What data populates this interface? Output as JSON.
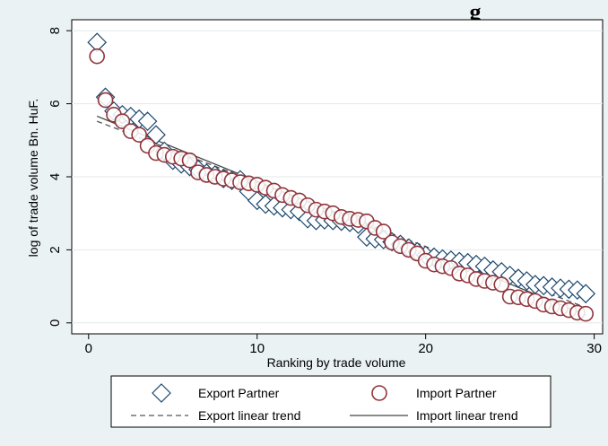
{
  "chart_data": {
    "type": "scatter",
    "title": "g",
    "xlabel": "Ranking by trade volume",
    "ylabel": "log of trade volume Bn. HuF.",
    "xlim": [
      -1,
      30.5
    ],
    "ylim": [
      -0.3,
      8.3
    ],
    "xticks": [
      0,
      10,
      20,
      30
    ],
    "yticks": [
      0,
      2,
      4,
      6,
      8
    ],
    "grid": "horizontal",
    "legend_position": "bottom",
    "series": [
      {
        "name": "Export Partner",
        "marker": "diamond",
        "color": "#1a476f",
        "points": [
          [
            0.5,
            7.68
          ],
          [
            1,
            6.18
          ],
          [
            1.5,
            5.8
          ],
          [
            2,
            5.7
          ],
          [
            2.5,
            5.65
          ],
          [
            3,
            5.58
          ],
          [
            3.5,
            5.52
          ],
          [
            4,
            5.15
          ],
          [
            4.5,
            4.7
          ],
          [
            5,
            4.45
          ],
          [
            5.5,
            4.35
          ],
          [
            6,
            4.28
          ],
          [
            6.5,
            4.2
          ],
          [
            7,
            4.1
          ],
          [
            7.5,
            4.05
          ],
          [
            8,
            3.95
          ],
          [
            8.5,
            3.9
          ],
          [
            9,
            3.92
          ],
          [
            9.5,
            3.6
          ],
          [
            10,
            3.35
          ],
          [
            10.5,
            3.25
          ],
          [
            11,
            3.2
          ],
          [
            11.5,
            3.15
          ],
          [
            12,
            3.1
          ],
          [
            12.5,
            3.05
          ],
          [
            13,
            2.85
          ],
          [
            13.5,
            2.8
          ],
          [
            14,
            2.82
          ],
          [
            14.5,
            2.8
          ],
          [
            15,
            2.78
          ],
          [
            15.5,
            2.75
          ],
          [
            16,
            2.7
          ],
          [
            16.5,
            2.35
          ],
          [
            17,
            2.3
          ],
          [
            17.5,
            2.28
          ],
          [
            18,
            2.22
          ],
          [
            18.5,
            2.15
          ],
          [
            19,
            2.05
          ],
          [
            19.5,
            1.95
          ],
          [
            20,
            1.85
          ],
          [
            20.5,
            1.8
          ],
          [
            21,
            1.75
          ],
          [
            21.5,
            1.72
          ],
          [
            22,
            1.68
          ],
          [
            22.5,
            1.65
          ],
          [
            23,
            1.6
          ],
          [
            23.5,
            1.55
          ],
          [
            24,
            1.45
          ],
          [
            24.5,
            1.4
          ],
          [
            25,
            1.3
          ],
          [
            25.5,
            1.22
          ],
          [
            26,
            1.15
          ],
          [
            26.5,
            1.05
          ],
          [
            27,
            1.02
          ],
          [
            27.5,
            0.98
          ],
          [
            28,
            0.95
          ],
          [
            28.5,
            0.92
          ],
          [
            29,
            0.9
          ],
          [
            29.5,
            0.8
          ]
        ]
      },
      {
        "name": "Import Partner",
        "marker": "circle",
        "color": "#90353b",
        "points": [
          [
            0.5,
            7.3
          ],
          [
            1,
            6.1
          ],
          [
            1.5,
            5.7
          ],
          [
            2,
            5.52
          ],
          [
            2.5,
            5.25
          ],
          [
            3,
            5.15
          ],
          [
            3.5,
            4.85
          ],
          [
            4,
            4.65
          ],
          [
            4.5,
            4.6
          ],
          [
            5,
            4.55
          ],
          [
            5.5,
            4.5
          ],
          [
            6,
            4.45
          ],
          [
            6.5,
            4.12
          ],
          [
            7,
            4.05
          ],
          [
            7.5,
            4.0
          ],
          [
            8,
            3.95
          ],
          [
            8.5,
            3.9
          ],
          [
            9,
            3.85
          ],
          [
            9.5,
            3.82
          ],
          [
            10,
            3.78
          ],
          [
            10.5,
            3.7
          ],
          [
            11,
            3.62
          ],
          [
            11.5,
            3.5
          ],
          [
            12,
            3.42
          ],
          [
            12.5,
            3.35
          ],
          [
            13,
            3.22
          ],
          [
            13.5,
            3.1
          ],
          [
            14,
            3.05
          ],
          [
            14.5,
            3.0
          ],
          [
            15,
            2.9
          ],
          [
            15.5,
            2.85
          ],
          [
            16,
            2.82
          ],
          [
            16.5,
            2.78
          ],
          [
            17,
            2.6
          ],
          [
            17.5,
            2.5
          ],
          [
            18,
            2.2
          ],
          [
            18.5,
            2.1
          ],
          [
            19,
            2.0
          ],
          [
            19.5,
            1.9
          ],
          [
            20,
            1.7
          ],
          [
            20.5,
            1.6
          ],
          [
            21,
            1.55
          ],
          [
            21.5,
            1.5
          ],
          [
            22,
            1.35
          ],
          [
            22.5,
            1.3
          ],
          [
            23,
            1.2
          ],
          [
            23.5,
            1.15
          ],
          [
            24,
            1.1
          ],
          [
            24.5,
            1.05
          ],
          [
            25,
            0.72
          ],
          [
            25.5,
            0.7
          ],
          [
            26,
            0.65
          ],
          [
            26.5,
            0.6
          ],
          [
            27,
            0.5
          ],
          [
            27.5,
            0.45
          ],
          [
            28,
            0.4
          ],
          [
            28.5,
            0.35
          ],
          [
            29,
            0.28
          ],
          [
            29.5,
            0.25
          ]
        ]
      },
      {
        "name": "Export linear trend",
        "kind": "line",
        "style": "dashed",
        "color": "#555555",
        "x": [
          0.5,
          29.5
        ],
        "y": [
          5.52,
          0.42
        ]
      },
      {
        "name": "Import linear trend",
        "kind": "line",
        "style": "solid",
        "color": "#444444",
        "x": [
          0.5,
          29.5
        ],
        "y": [
          5.66,
          0.22
        ]
      }
    ],
    "legend": [
      {
        "label": "Export Partner",
        "symbol": "diamond"
      },
      {
        "label": "Import Partner",
        "symbol": "circle"
      },
      {
        "label": "Export linear trend",
        "symbol": "dashed"
      },
      {
        "label": "Import linear trend",
        "symbol": "solid"
      }
    ]
  }
}
